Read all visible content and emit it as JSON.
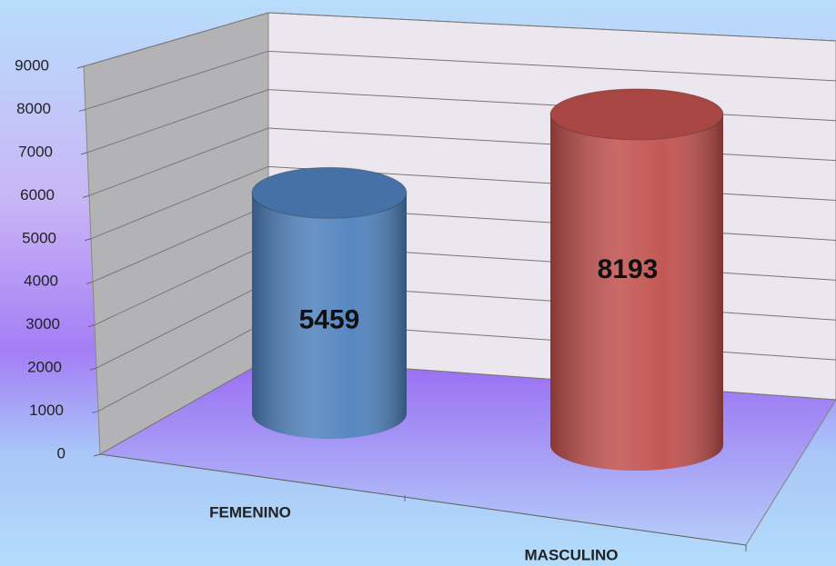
{
  "chart_data": {
    "type": "cylinder",
    "categories": [
      "FEMENINO",
      "MASCULINO"
    ],
    "values": [
      5459,
      8193
    ],
    "colors": [
      "#4f81bd",
      "#c0504d"
    ],
    "ylim": [
      0,
      9000
    ],
    "yticks": [
      0,
      1000,
      2000,
      3000,
      4000,
      5000,
      6000,
      7000,
      8000,
      9000
    ],
    "grid": true
  }
}
